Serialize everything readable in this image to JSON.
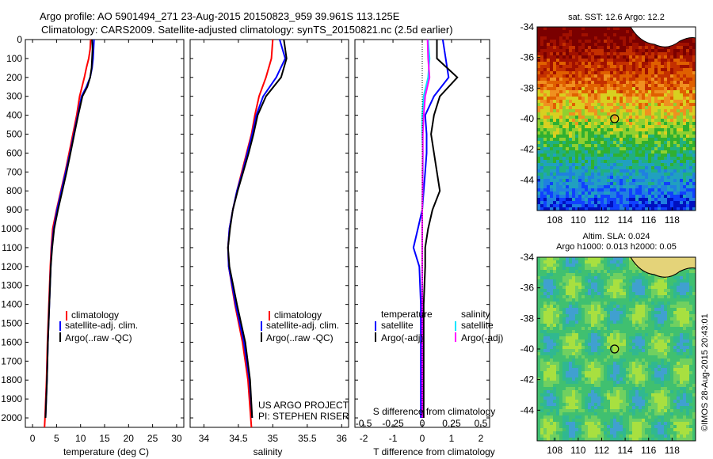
{
  "header": {
    "title_line1": "Argo profile: AO 5901494_271 23-Aug-2015 20150823_959 39.961S 113.125E",
    "title_line2": "Climatology: CARS2009. Satellite-adjusted climatology: synTS_20150821.nc (2.5d earlier)"
  },
  "colors": {
    "climatology": "#ff0000",
    "satellite": "#0000ff",
    "argo": "#000000",
    "sal_satellite": "#00e5ff",
    "sal_argo": "#ff00ff"
  },
  "panel_temp": {
    "xlabel": "temperature (deg C)",
    "legend": [
      "climatology",
      "satellite-adj. clim.",
      "Argo(..raw -QC)"
    ]
  },
  "panel_sal": {
    "xlabel": "salinity",
    "legend": [
      "climatology",
      "satellite-adj. clim.",
      "Argo(..raw -QC)"
    ],
    "credit_line1": "US ARGO PROJECT",
    "credit_line2": "PI: STEPHEN RISER"
  },
  "panel_diff": {
    "xlabel": "T difference from climatology",
    "toplabel": "S difference from climatology",
    "legend_temp_title": "temperature",
    "legend_sal_title": "salinity",
    "legend_items": [
      "satellite",
      "Argo(-adj)",
      "satellite",
      "Argo(-adj)"
    ]
  },
  "map_sst": {
    "title": "sat. SST: 12.6 Argo: 12.2",
    "xticks": [
      "108",
      "110",
      "112",
      "114",
      "116",
      "118"
    ],
    "yticks": [
      "-34",
      "-36",
      "-38",
      "-40",
      "-42",
      "-44"
    ]
  },
  "map_sla": {
    "title_line1": "Altim. SLA: 0.024",
    "title_line2": "Argo h1000: 0.013 h2000: 0.05",
    "xticks": [
      "108",
      "110",
      "112",
      "114",
      "116",
      "118"
    ],
    "yticks": [
      "-34",
      "-36",
      "-38",
      "-40",
      "-42",
      "-44"
    ]
  },
  "watermark": "©IMOS 28-Aug-2015 20:43:01",
  "chart_data": [
    {
      "type": "line",
      "panel": "temperature",
      "xlabel": "temperature (deg C)",
      "ylabel": "",
      "xlim": [
        -1.5,
        31.5
      ],
      "ylim": [
        2050,
        0
      ],
      "xticks": [
        0,
        5,
        10,
        15,
        20,
        25,
        30
      ],
      "yticks": [
        0,
        100,
        200,
        300,
        400,
        500,
        600,
        700,
        800,
        900,
        1000,
        1100,
        1200,
        1300,
        1400,
        1500,
        1600,
        1700,
        1800,
        1900,
        2000
      ],
      "series": [
        {
          "name": "climatology",
          "color": "#ff0000",
          "depth": [
            0,
            50,
            100,
            150,
            200,
            250,
            300,
            400,
            500,
            600,
            700,
            800,
            900,
            1000,
            1100,
            1200,
            1400,
            1600,
            1800,
            2000,
            2050
          ],
          "values": [
            12.1,
            12.0,
            11.7,
            11.2,
            10.8,
            10.3,
            9.8,
            9.2,
            8.4,
            7.6,
            6.8,
            5.9,
            5.0,
            4.2,
            3.9,
            3.7,
            3.4,
            3.1,
            2.9,
            2.6,
            2.5
          ]
        },
        {
          "name": "satellite-adj. clim.",
          "color": "#0000ff",
          "depth": [
            0,
            50,
            100,
            150,
            200,
            250,
            300,
            400,
            500,
            600,
            700,
            800,
            900,
            1000,
            1100,
            1200,
            1400,
            1600,
            1800,
            2000
          ],
          "values": [
            12.8,
            12.7,
            12.6,
            12.4,
            12.0,
            11.2,
            10.2,
            9.4,
            8.6,
            7.8,
            6.9,
            6.0,
            5.1,
            4.4,
            4.0,
            3.8,
            3.5,
            3.2,
            3.0,
            2.7
          ]
        },
        {
          "name": "Argo(..raw -QC)",
          "color": "#000000",
          "depth": [
            0,
            50,
            100,
            150,
            200,
            250,
            300,
            400,
            500,
            600,
            700,
            800,
            900,
            1000,
            1100,
            1200,
            1400,
            1600,
            1800,
            2000
          ],
          "values": [
            12.4,
            12.5,
            12.4,
            12.3,
            12.0,
            11.4,
            10.4,
            9.5,
            8.7,
            7.9,
            7.1,
            6.2,
            5.3,
            4.5,
            4.1,
            3.8,
            3.5,
            3.2,
            3.0,
            2.7
          ]
        }
      ]
    },
    {
      "type": "line",
      "panel": "salinity",
      "xlabel": "salinity",
      "ylabel": "",
      "xlim": [
        33.8,
        36.1
      ],
      "ylim": [
        2050,
        0
      ],
      "xticks": [
        34,
        34.5,
        35,
        35.5,
        36
      ],
      "series": [
        {
          "name": "climatology",
          "color": "#ff0000",
          "depth": [
            0,
            100,
            200,
            300,
            400,
            500,
            600,
            700,
            800,
            900,
            1000,
            1100,
            1200,
            1400,
            1600,
            1800,
            2000,
            2050
          ],
          "values": [
            35.0,
            34.98,
            34.9,
            34.8,
            34.74,
            34.69,
            34.62,
            34.55,
            34.48,
            34.42,
            34.37,
            34.35,
            34.36,
            34.45,
            34.56,
            34.64,
            34.68,
            34.69
          ]
        },
        {
          "name": "satellite-adj. clim.",
          "color": "#0000ff",
          "depth": [
            0,
            100,
            200,
            300,
            400,
            500,
            600,
            700,
            800,
            900,
            1000,
            1100,
            1200,
            1400,
            1600,
            1800,
            2000
          ],
          "values": [
            35.1,
            35.18,
            35.05,
            34.86,
            34.76,
            34.7,
            34.63,
            34.56,
            34.48,
            34.42,
            34.37,
            34.35,
            34.36,
            34.46,
            34.58,
            34.66,
            34.7
          ]
        },
        {
          "name": "Argo(..raw -QC)",
          "color": "#000000",
          "depth": [
            0,
            100,
            200,
            300,
            400,
            500,
            600,
            700,
            800,
            900,
            1000,
            1100,
            1200,
            1400,
            1600,
            1800,
            2000
          ],
          "values": [
            35.16,
            35.2,
            35.12,
            34.9,
            34.78,
            34.72,
            34.65,
            34.57,
            34.49,
            34.42,
            34.38,
            34.35,
            34.37,
            34.48,
            34.6,
            34.67,
            34.7
          ]
        }
      ]
    },
    {
      "type": "line",
      "panel": "difference",
      "xlabel": "T difference from climatology",
      "x2label": "S difference from climatology",
      "xlim": [
        -2.3,
        2.3
      ],
      "ylim": [
        2050,
        0
      ],
      "xticks": [
        -2,
        -1,
        0,
        1,
        2
      ],
      "x2ticks": [
        -0.5,
        -0.25,
        0,
        0.25,
        0.5
      ],
      "series": [
        {
          "name": "temperature satellite",
          "color": "#0000ff",
          "depth": [
            0,
            100,
            200,
            300,
            400,
            500,
            600,
            700,
            800,
            900,
            1000,
            1100,
            1200,
            1400,
            1600,
            1800,
            2000
          ],
          "values": [
            0.7,
            0.8,
            0.9,
            0.4,
            0.1,
            0.15,
            0.15,
            0.1,
            0.05,
            0.0,
            -0.15,
            -0.3,
            -0.1,
            -0.05,
            -0.05,
            -0.05,
            -0.05
          ]
        },
        {
          "name": "temperature Argo(-adj)",
          "color": "#000000",
          "depth": [
            0,
            100,
            200,
            300,
            400,
            500,
            600,
            700,
            800,
            900,
            1000,
            1100,
            1200,
            1400,
            1600,
            1800,
            2000
          ],
          "values": [
            0.5,
            0.5,
            1.2,
            0.6,
            0.4,
            0.3,
            0.4,
            0.5,
            0.6,
            0.35,
            0.2,
            0.1,
            0.1,
            0.05,
            0.05,
            0.05,
            0.05
          ]
        },
        {
          "name": "salinity satellite",
          "color": "#00e5ff",
          "depth": [
            0,
            100,
            200,
            300,
            400,
            500,
            600,
            700,
            800,
            900,
            1000,
            1100,
            1200,
            1400,
            1600,
            1800,
            2000
          ],
          "values": [
            0.2,
            0.25,
            0.2,
            0.05,
            0.0,
            0.0,
            0.02,
            0.02,
            0.01,
            0.0,
            0.0,
            0.0,
            0.0,
            0.0,
            0.0,
            0.0,
            0.0
          ]
        },
        {
          "name": "salinity Argo(-adj)",
          "color": "#ff00ff",
          "depth": [
            0,
            100,
            200,
            300,
            400,
            500,
            600,
            700,
            800,
            900,
            1000,
            1100,
            1200,
            1400,
            1600,
            1800,
            2000
          ],
          "values": [
            0.18,
            0.2,
            0.25,
            0.1,
            0.05,
            0.02,
            0.02,
            0.01,
            0.01,
            0.0,
            0.0,
            0.0,
            0.0,
            0.0,
            0.0,
            0.0,
            0.0
          ]
        }
      ]
    },
    {
      "type": "heatmap",
      "panel": "sat. SST map",
      "title": "sat. SST: 12.6 Argo: 12.2",
      "xlim": [
        106.5,
        120
      ],
      "ylim": [
        -46,
        -34
      ],
      "argo_position": [
        113.1,
        -40.0
      ]
    },
    {
      "type": "heatmap",
      "panel": "Altim. SLA map",
      "title": "Altim. SLA: 0.024",
      "subtitle": "Argo h1000: 0.013 h2000: 0.05",
      "xlim": [
        106.5,
        120
      ],
      "ylim": [
        -46,
        -34
      ],
      "argo_position": [
        113.1,
        -40.0
      ]
    }
  ]
}
